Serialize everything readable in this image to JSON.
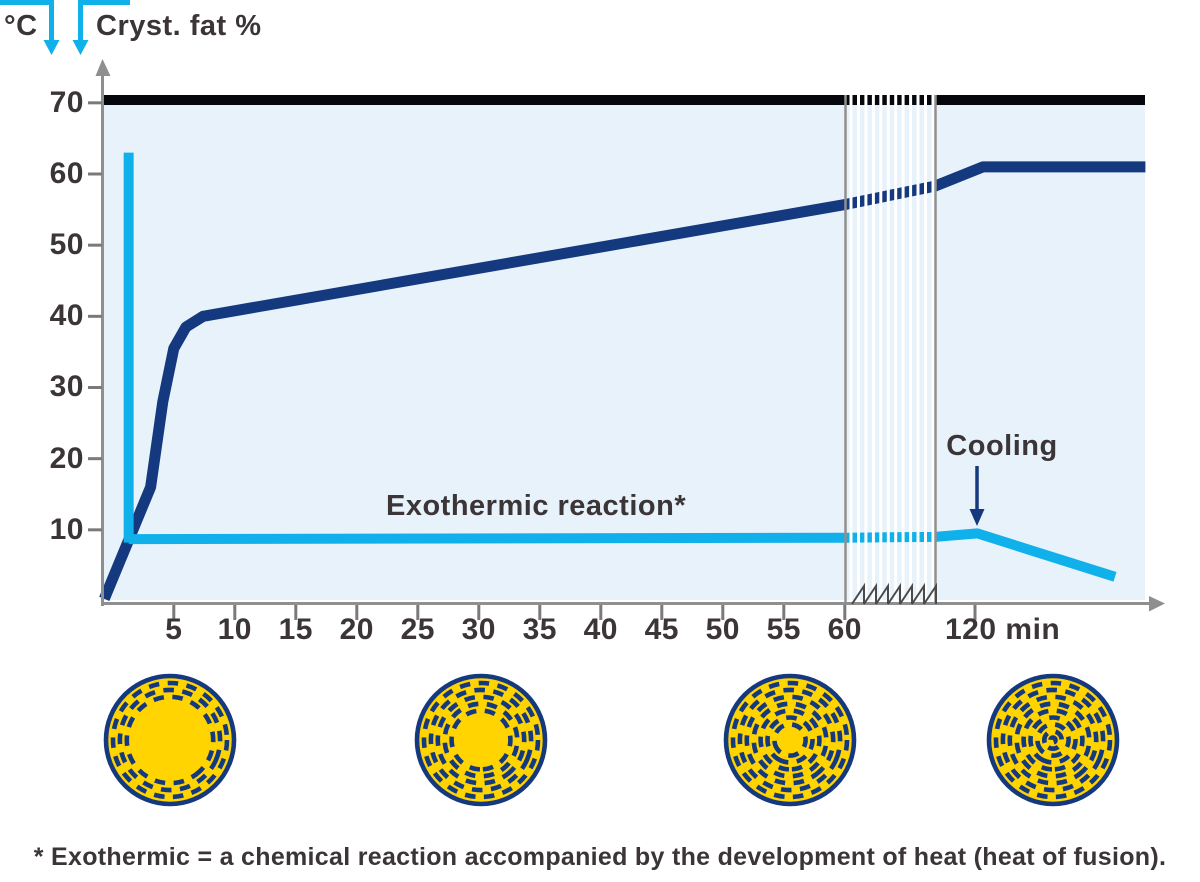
{
  "legend": {
    "temp": "°C",
    "fat": "Cryst. fat %"
  },
  "annotations": {
    "exothermic": "Exothermic reaction*",
    "cooling": "Cooling"
  },
  "footnote": "* Exothermic = a chemical reaction accompanied by the development of heat (heat of fusion).",
  "axes": {
    "y_ticks": [
      "70",
      "60",
      "50",
      "40",
      "30",
      "20",
      "10"
    ],
    "x_ticks": [
      "5",
      "10",
      "15",
      "20",
      "25",
      "30",
      "35",
      "40",
      "45",
      "50",
      "55",
      "60"
    ],
    "x_far_tick_value": 120,
    "x_far_label": "120 min",
    "y_range": [
      0,
      70
    ]
  },
  "colors": {
    "navy": "#15397E",
    "cyan": "#10B1EA",
    "plot_bg": "#E7F2FB",
    "top_border": "#05070D",
    "axis": "#8F8F8F",
    "tick": "#7A7A7A",
    "break_line": "#909090",
    "sawtooth": "#4A4A4A",
    "white": "#FFFFFF",
    "yellow": "#FFD400",
    "text": "#3B3537"
  },
  "chart_data": {
    "type": "line",
    "title": "",
    "xlabel": "min",
    "ylabel": "°C / Cryst. fat %",
    "x_axis_break": {
      "from": 60,
      "to": 115
    },
    "ylim": [
      0,
      70
    ],
    "series": [
      {
        "name": "temperature",
        "unit": "°C",
        "color_key": "navy",
        "width": 11,
        "points": [
          [
            -0.7,
            0.3
          ],
          [
            3.1,
            16
          ],
          [
            4.1,
            28
          ],
          [
            5,
            35.5
          ],
          [
            6,
            38.5
          ],
          [
            7.4,
            40
          ],
          [
            60,
            55.7
          ],
          [
            115,
            58.3
          ],
          [
            121,
            61
          ],
          [
            141.3,
            61
          ]
        ]
      },
      {
        "name": "crystalline-fat",
        "unit": "%",
        "color_key": "cyan",
        "width": 10,
        "points": [
          [
            1.3,
            8.7
          ],
          [
            60,
            8.9
          ],
          [
            115,
            9.0
          ],
          [
            120.3,
            9.5
          ],
          [
            137.5,
            3.4
          ]
        ],
        "spike": {
          "t": 1.3,
          "v_from": 8.2,
          "v_to": 63,
          "width": 10
        }
      }
    ]
  },
  "stages": [
    {
      "rings": 3
    },
    {
      "rings": 5
    },
    {
      "rings": 7
    },
    {
      "rings": 9
    }
  ]
}
